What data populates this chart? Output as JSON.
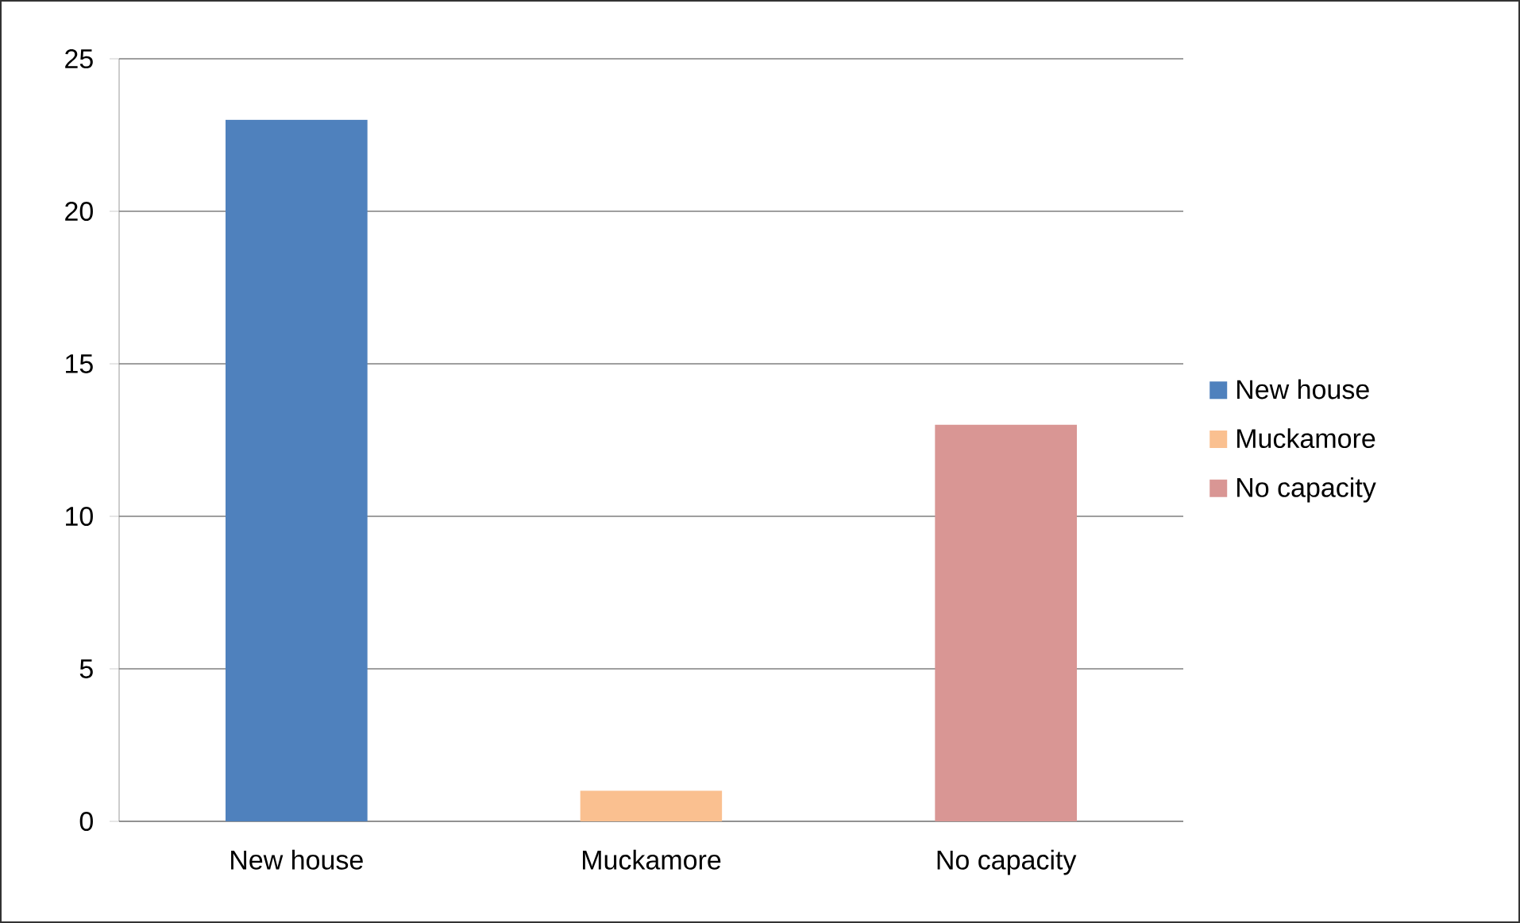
{
  "chart_data": {
    "type": "bar",
    "categories": [
      "New house",
      "Muckamore",
      "No capacity"
    ],
    "series": [
      {
        "name": "New house",
        "color": "#4f81bd",
        "values": [
          23,
          null,
          null
        ]
      },
      {
        "name": "Muckamore",
        "color": "#fac090",
        "values": [
          null,
          1,
          null
        ]
      },
      {
        "name": "No capacity",
        "color": "#d99694",
        "values": [
          null,
          null,
          13
        ]
      }
    ],
    "ylim": [
      0,
      25
    ],
    "yticks": [
      0,
      5,
      10,
      15,
      20,
      25
    ],
    "grid": "y",
    "legend": "right"
  }
}
